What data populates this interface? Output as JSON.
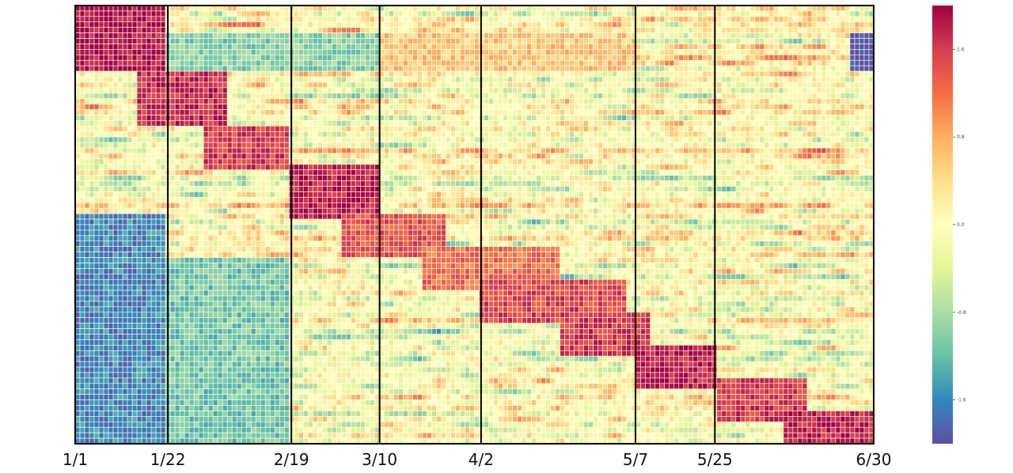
{
  "chart_data": {
    "type": "heatmap",
    "title": "",
    "xlabel": "",
    "ylabel": "",
    "x_range": [
      "1/1",
      "6/30"
    ],
    "x_ticks": [
      "1/1",
      "1/22",
      "2/19",
      "3/10",
      "4/2",
      "5/7",
      "5/25",
      "6/30"
    ],
    "vertical_dividers": [
      "1/22",
      "2/19",
      "3/10",
      "4/2",
      "5/7",
      "5/25"
    ],
    "colorbar": {
      "ticks": [
        "1.6",
        "0.8",
        "0.0",
        "-0.8",
        "-1.6"
      ],
      "range": [
        -2.0,
        2.0
      ],
      "colormap": "Spectral_r"
    },
    "grid": "white cell borders",
    "features": [
      {
        "row_start": 0,
        "row_end": 12,
        "date_start": "1/1",
        "date_end": "1/22",
        "level": 1.9
      },
      {
        "row_start": 12,
        "row_end": 22,
        "date_start": "1/15",
        "date_end": "2/5",
        "level": 1.7
      },
      {
        "row_start": 22,
        "row_end": 30,
        "date_start": "1/30",
        "date_end": "2/19",
        "level": 1.6
      },
      {
        "row_start": 29,
        "row_end": 39,
        "date_start": "2/19",
        "date_end": "3/10",
        "level": 1.8
      },
      {
        "row_start": 38,
        "row_end": 46,
        "date_start": "3/1",
        "date_end": "3/25",
        "level": 1.4
      },
      {
        "row_start": 44,
        "row_end": 52,
        "date_start": "3/20",
        "date_end": "4/20",
        "level": 1.2
      },
      {
        "row_start": 50,
        "row_end": 58,
        "date_start": "4/2",
        "date_end": "5/5",
        "level": 1.5
      },
      {
        "row_start": 56,
        "row_end": 64,
        "date_start": "4/20",
        "date_end": "5/10",
        "level": 1.6
      },
      {
        "row_start": 62,
        "row_end": 70,
        "date_start": "5/7",
        "date_end": "5/25",
        "level": 1.8
      },
      {
        "row_start": 68,
        "row_end": 76,
        "date_start": "5/25",
        "date_end": "6/15",
        "level": 1.6
      },
      {
        "row_start": 74,
        "row_end": 80,
        "date_start": "6/10",
        "date_end": "6/30",
        "level": 1.8
      },
      {
        "row_start": 5,
        "row_end": 12,
        "date_start": "1/22",
        "date_end": "3/10",
        "level": -1.0
      },
      {
        "row_start": 5,
        "row_end": 12,
        "date_start": "3/10",
        "date_end": "5/7",
        "level": 0.6
      },
      {
        "row_start": 5,
        "row_end": 12,
        "date_start": "6/25",
        "date_end": "6/30",
        "level": -2.0
      },
      {
        "row_start": 38,
        "row_end": 80,
        "date_start": "1/1",
        "date_end": "1/22",
        "level": -1.6
      },
      {
        "row_start": 46,
        "row_end": 80,
        "date_start": "1/22",
        "date_end": "2/19",
        "level": -1.1
      }
    ]
  }
}
